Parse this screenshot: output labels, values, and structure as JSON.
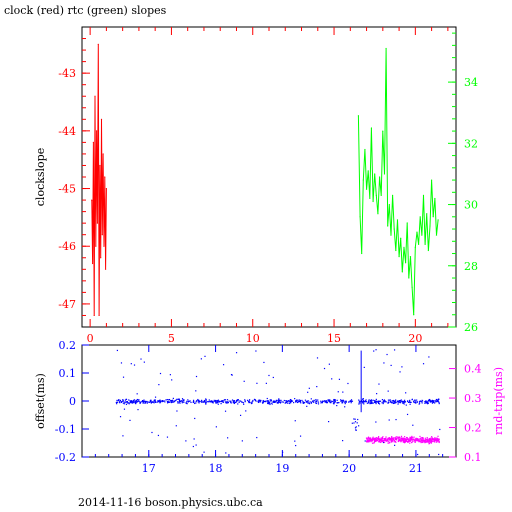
{
  "page": {
    "title": "clock (red) rtc (green) slopes",
    "footer": "2014-11-16 boson.physics.ubc.ca"
  },
  "colors": {
    "clock": "#ff0000",
    "rtc": "#00ff00",
    "offset": "#0000ff",
    "rtt": "#ff00ff",
    "frame": "#000000"
  },
  "chart_data": [
    {
      "type": "line",
      "title": "clock (red) rtc (green) slopes",
      "ylabel": "clockslope",
      "xlim": [
        -0.5,
        22.5
      ],
      "ylim": [
        -47.4,
        -42.2
      ],
      "ylim_right": [
        26,
        35.8
      ],
      "xticks": [
        "0",
        "5",
        "10",
        "15",
        "20"
      ],
      "yticks_left": [
        "-43",
        "-44",
        "-45",
        "-46",
        "-47"
      ],
      "yticks_right": [
        "34",
        "32",
        "30",
        "28",
        "26"
      ],
      "series": [
        {
          "name": "clock",
          "axis": "left",
          "color": "#ff0000",
          "x": [
            0.1,
            0.15,
            0.2,
            0.25,
            0.3,
            0.35,
            0.4,
            0.45,
            0.5,
            0.55,
            0.6,
            0.65,
            0.7,
            0.75,
            0.8,
            0.85,
            0.9,
            0.95,
            1.0
          ],
          "y": [
            -45.2,
            -46.3,
            -44.2,
            -47.2,
            -43.4,
            -46.0,
            -44.0,
            -45.6,
            -42.5,
            -47.2,
            -44.6,
            -46.2,
            -43.8,
            -45.8,
            -44.4,
            -46.0,
            -44.8,
            -46.4,
            -45.0
          ]
        },
        {
          "name": "rtc",
          "axis": "right",
          "color": "#00ff00",
          "x": [
            16.5,
            16.6,
            16.7,
            16.8,
            16.9,
            17.0,
            17.1,
            17.2,
            17.3,
            17.4,
            17.5,
            17.6,
            17.7,
            17.8,
            17.9,
            18.0,
            18.1,
            18.2,
            18.3,
            18.4,
            18.5,
            18.6,
            18.7,
            18.8,
            18.9,
            19.0,
            19.1,
            19.2,
            19.3,
            19.4,
            19.5,
            19.6,
            19.7,
            19.8,
            19.9,
            20.0,
            20.1,
            20.2,
            20.3,
            20.4,
            20.5,
            20.6,
            20.7,
            20.8,
            20.9,
            21.0,
            21.1,
            21.2,
            21.3,
            21.4
          ],
          "y": [
            32.9,
            29.6,
            28.4,
            30.8,
            31.8,
            30.5,
            31.1,
            30.2,
            32.5,
            30.1,
            31.0,
            30.3,
            29.7,
            30.9,
            30.3,
            32.4,
            31.0,
            35.1,
            29.3,
            30.0,
            29.0,
            30.3,
            29.2,
            28.5,
            29.5,
            28.3,
            28.9,
            27.8,
            28.6,
            28.1,
            29.4,
            27.6,
            28.3,
            27.3,
            26.4,
            28.6,
            29.1,
            28.7,
            29.6,
            29.0,
            30.3,
            28.7,
            29.7,
            28.5,
            29.3,
            30.8,
            29.6,
            30.2,
            29.0,
            29.5
          ]
        }
      ]
    },
    {
      "type": "scatter",
      "ylabel": "offset(ms)",
      "ylabel_right": "rnd-trip(ms)",
      "xlim": [
        16.0,
        21.6
      ],
      "ylim": [
        -0.2,
        0.2
      ],
      "ylim_right": [
        0.1,
        0.48
      ],
      "xticks": [
        "17",
        "18",
        "19",
        "20",
        "21"
      ],
      "yticks_left": [
        "0.2",
        "0.1",
        "0",
        "-0.1",
        "-0.2"
      ],
      "yticks_right": [
        "0.4",
        "0.3",
        "0.2",
        "0.1"
      ],
      "series": [
        {
          "name": "offset",
          "axis": "left",
          "color": "#0000ff",
          "x_range": [
            16.5,
            21.35
          ],
          "center": 0.0,
          "band": 0.012
        },
        {
          "name": "rnd-trip",
          "axis": "right",
          "color": "#ff00ff",
          "x_range": [
            20.25,
            21.35
          ],
          "center": 0.16,
          "band": 0.015
        }
      ]
    }
  ]
}
